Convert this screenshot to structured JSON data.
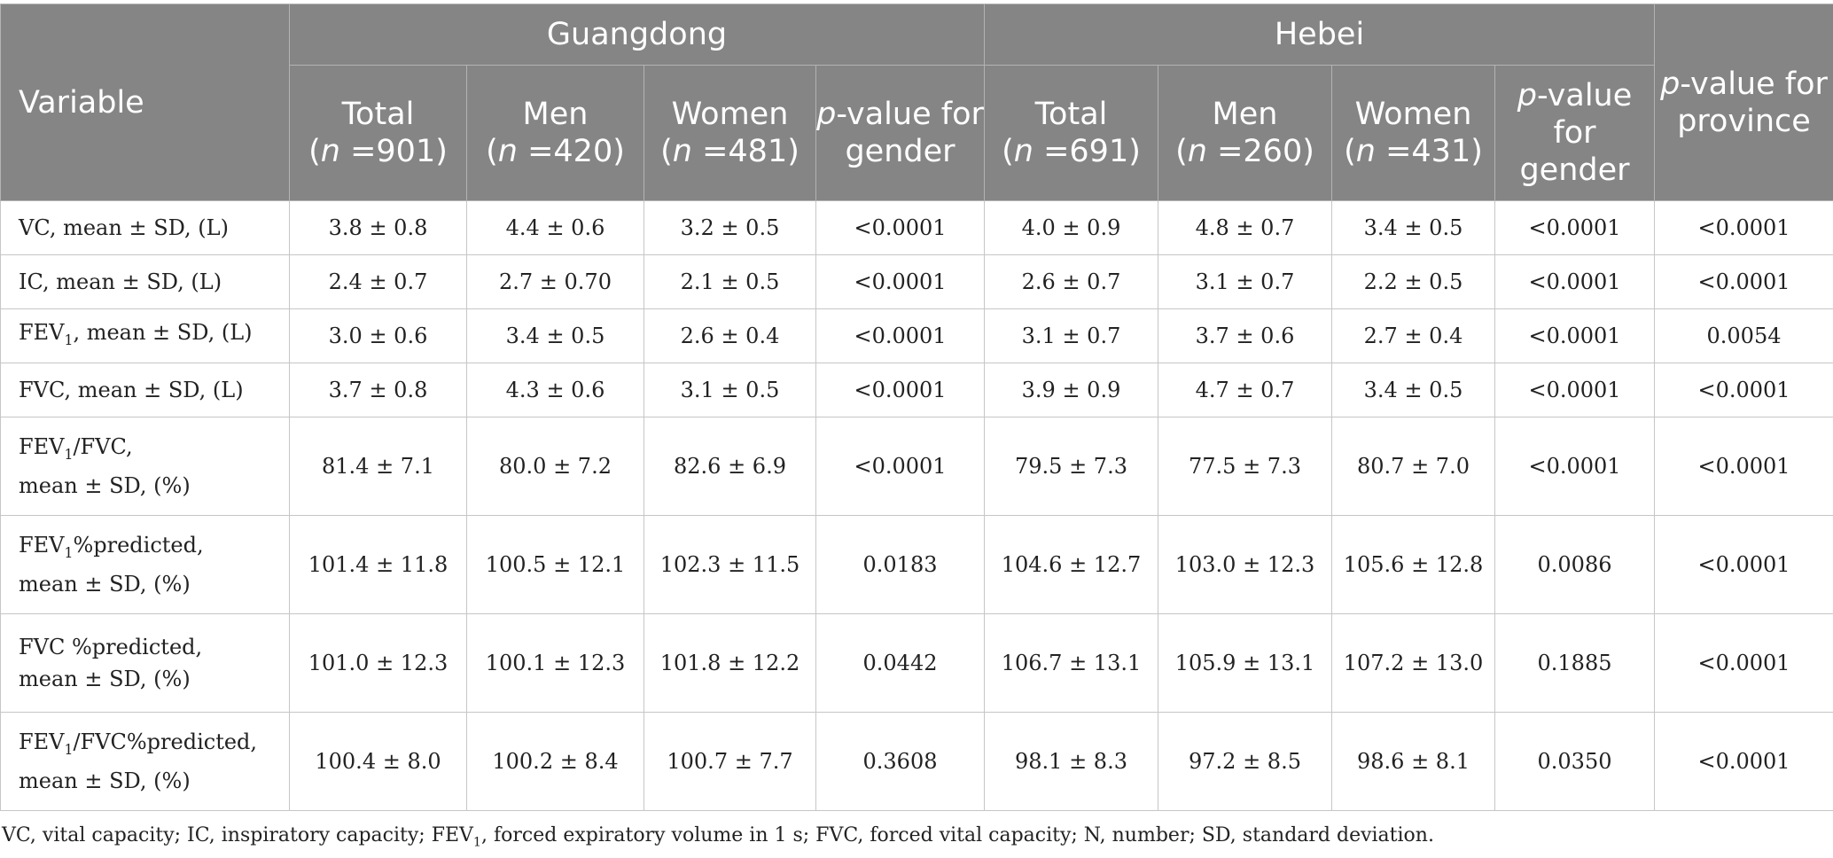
{
  "header": {
    "variable": "Variable",
    "groups": [
      "Guangdong",
      "Hebei"
    ],
    "p_province": "p-value for province",
    "guangdong_cols": [
      "Total (n =901)",
      "Men (n =420)",
      "Women (n =481)",
      "p-value for gender"
    ],
    "hebei_cols": [
      "Total (n =691)",
      "Men (n =260)",
      "Women (n =431)",
      "p-value for gender"
    ]
  },
  "rows": [
    {
      "label": "VC, mean ± SD, (L)",
      "values": [
        "3.8 ± 0.8",
        "4.4 ± 0.6",
        "3.2 ± 0.5",
        "<0.0001",
        "4.0 ± 0.9",
        "4.8 ± 0.7",
        "3.4 ± 0.5",
        "<0.0001",
        "<0.0001"
      ]
    },
    {
      "label": "IC, mean ± SD, (L)",
      "values": [
        "2.4 ± 0.7",
        "2.7 ± 0.70",
        "2.1 ± 0.5",
        "<0.0001",
        "2.6 ± 0.7",
        "3.1 ± 0.7",
        "2.2 ± 0.5",
        "<0.0001",
        "<0.0001"
      ]
    },
    {
      "label": "FEV1, mean ± SD, (L)",
      "values": [
        "3.0 ± 0.6",
        "3.4 ± 0.5",
        "2.6 ± 0.4",
        "<0.0001",
        "3.1 ± 0.7",
        "3.7 ± 0.6",
        "2.7 ± 0.4",
        "<0.0001",
        "0.0054"
      ]
    },
    {
      "label": "FVC, mean ± SD, (L)",
      "values": [
        "3.7 ± 0.8",
        "4.3 ± 0.6",
        "3.1 ± 0.5",
        "<0.0001",
        "3.9 ± 0.9",
        "4.7 ± 0.7",
        "3.4 ± 0.5",
        "<0.0001",
        "<0.0001"
      ]
    },
    {
      "label": "FEV1/FVC, mean ± SD, (%)",
      "values": [
        "81.4 ± 7.1",
        "80.0 ± 7.2",
        "82.6 ± 6.9",
        "<0.0001",
        "79.5 ± 7.3",
        "77.5 ± 7.3",
        "80.7 ± 7.0",
        "<0.0001",
        "<0.0001"
      ]
    },
    {
      "label": "FEV1%predicted, mean ± SD, (%)",
      "values": [
        "101.4 ± 11.8",
        "100.5 ± 12.1",
        "102.3 ± 11.5",
        "0.0183",
        "104.6 ± 12.7",
        "103.0 ± 12.3",
        "105.6 ± 12.8",
        "0.0086",
        "<0.0001"
      ]
    },
    {
      "label": "FVC %predicted, mean ± SD, (%)",
      "values": [
        "101.0 ± 12.3",
        "100.1 ± 12.3",
        "101.8 ± 12.2",
        "0.0442",
        "106.7 ± 13.1",
        "105.9 ± 13.1",
        "107.2 ± 13.0",
        "0.1885",
        "<0.0001"
      ]
    },
    {
      "label": "FEV1/FVC%predicted, mean ± SD, (%)",
      "values": [
        "100.4 ± 8.0",
        "100.2 ± 8.4",
        "100.7 ± 7.7",
        "0.3608",
        "98.1 ± 8.3",
        "97.2 ± 8.5",
        "98.6 ± 8.1",
        "0.0350",
        "<0.0001"
      ]
    }
  ],
  "footnote": "VC, vital capacity; IC, inspiratory capacity; FEV1, forced expiratory volume in 1 s; FVC, forced vital capacity; N, number; SD, standard deviation."
}
